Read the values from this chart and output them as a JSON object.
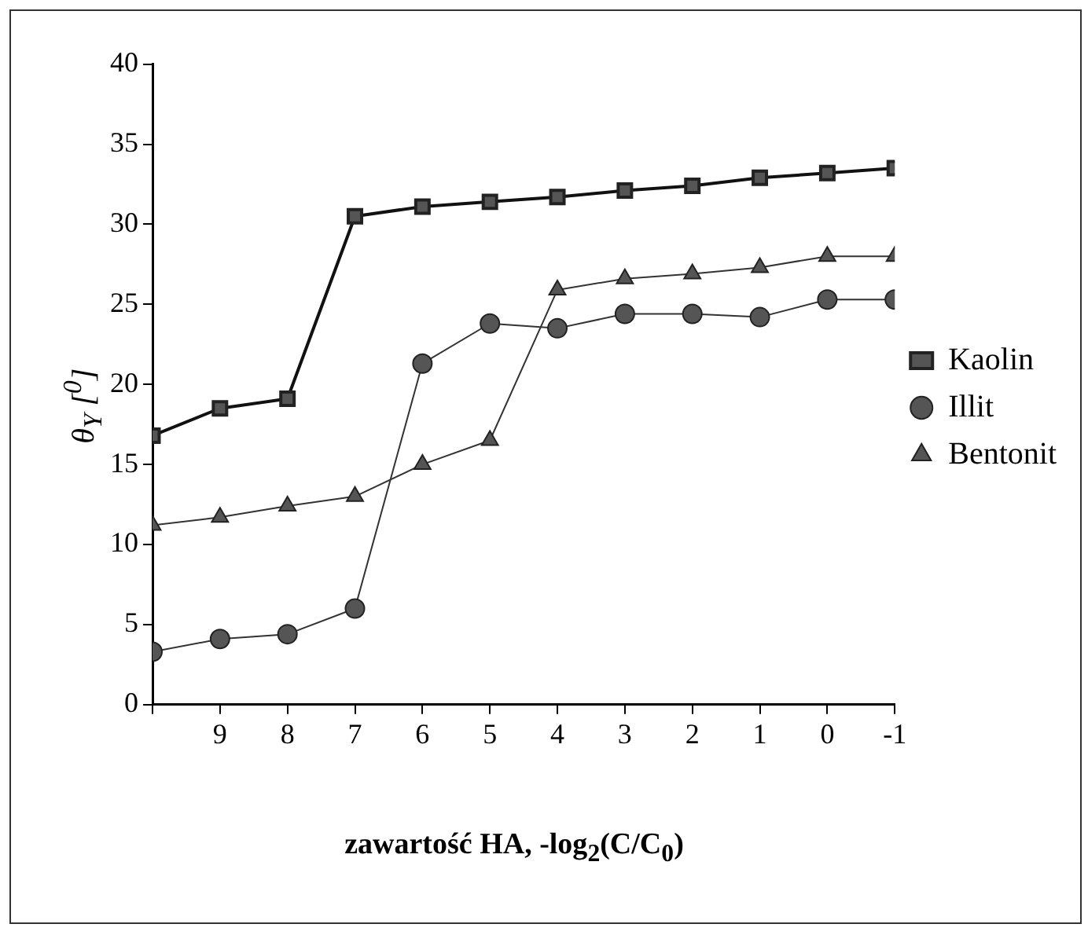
{
  "chart_data": {
    "type": "line",
    "xlabel": "zawartość HA, -log$_{2}$(C/C$_{0}$)",
    "ylabel": "θ$_{Y}$ [$^{0}$]",
    "x": [
      10,
      9,
      8,
      7,
      6,
      5,
      4,
      3,
      2,
      1,
      0,
      -1
    ],
    "xlim": [
      10,
      -1
    ],
    "xticks": [
      {
        "value": 10,
        "label": null
      },
      9,
      8,
      7,
      6,
      5,
      4,
      3,
      2,
      1,
      0,
      -1
    ],
    "ylim": [
      0,
      40
    ],
    "yticks": [
      0,
      5,
      10,
      15,
      20,
      25,
      30,
      35,
      40
    ],
    "grid": false,
    "legend": "right",
    "series": [
      {
        "name": "Kaolin",
        "color": "#555555",
        "marker": "square",
        "values": [
          16.8,
          18.5,
          19.1,
          30.5,
          31.1,
          31.4,
          31.7,
          32.1,
          32.4,
          32.9,
          33.2,
          33.5
        ]
      },
      {
        "name": "Illit",
        "color": "#555555",
        "marker": "circle",
        "values": [
          3.3,
          4.1,
          4.4,
          6.0,
          21.3,
          23.8,
          23.5,
          24.4,
          24.4,
          24.2,
          25.3,
          25.3
        ]
      },
      {
        "name": "Bentonit",
        "color": "#555555",
        "marker": "triangle",
        "values": [
          11.2,
          11.7,
          12.4,
          13.0,
          15.0,
          16.5,
          25.9,
          26.6,
          26.9,
          27.3,
          28.0,
          28.0
        ]
      }
    ]
  }
}
